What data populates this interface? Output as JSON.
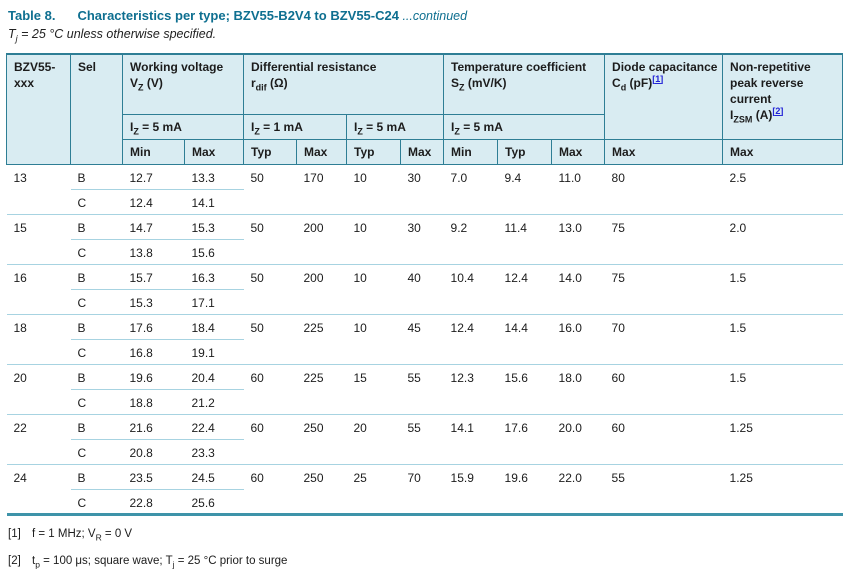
{
  "page": {
    "title_label": "Table 8.",
    "title_text": "Characteristics per type; BZV55-B2V4 to BZV55-C24",
    "title_continued": " ...continued",
    "subtitle": {
      "base": "T",
      "sub": "j",
      "rest": " = 25 °C unless otherwise specified."
    }
  },
  "colors": {
    "accent_teal": "#0e6f90",
    "border_teal": "#2e7e95",
    "border_bottom_teal": "#3e93a9",
    "header_bg": "#d9ecf2",
    "separator_blue": "#a7d3e1",
    "link_blue": "#2222d6"
  },
  "table": {
    "header": {
      "type": {
        "line1": "BZV55-",
        "line2": "xxx"
      },
      "sel": "Sel",
      "working_voltage": {
        "title": "Working voltage",
        "sym": "V",
        "sub": "Z",
        "unit": " (V)"
      },
      "diff_resistance": {
        "title": "Differential resistance",
        "sym": "r",
        "sub": "dif",
        "unit": " (Ω)"
      },
      "temp_coeff": {
        "title": "Temperature coefficient",
        "sym": "S",
        "sub": "Z",
        "unit": " (mV/K)"
      },
      "diode_cap": {
        "title": "Diode capacitance",
        "sym": "C",
        "sub": "d",
        "unit": " (pF)",
        "ref": "[1]"
      },
      "izsm": {
        "title": "Non-repetitive peak reverse current",
        "sym": "I",
        "sub": "ZSM",
        "unit": " (A)",
        "ref": "[2]"
      },
      "cond": {
        "base": "I",
        "sub": "Z",
        "c1": " = 5 mA",
        "c2": " = 1 mA",
        "c3": " = 5 mA",
        "c4": " = 5 mA"
      },
      "measures": [
        "Min",
        "Max",
        "Typ",
        "Max",
        "Typ",
        "Max",
        "Min",
        "Typ",
        "Max",
        "Max",
        "Max"
      ]
    },
    "groups": [
      {
        "type": "13",
        "b": {
          "sel": "B",
          "vmin": "12.7",
          "vmax": "13.3",
          "r1typ": "50",
          "r1max": "170",
          "r5typ": "10",
          "r5max": "30",
          "tmin": "7.0",
          "ttyp": "9.4",
          "tmax": "11.0",
          "cd": "80",
          "izsm": "2.5"
        },
        "c": {
          "sel": "C",
          "vmin": "12.4",
          "vmax": "14.1"
        }
      },
      {
        "type": "15",
        "b": {
          "sel": "B",
          "vmin": "14.7",
          "vmax": "15.3",
          "r1typ": "50",
          "r1max": "200",
          "r5typ": "10",
          "r5max": "30",
          "tmin": "9.2",
          "ttyp": "11.4",
          "tmax": "13.0",
          "cd": "75",
          "izsm": "2.0"
        },
        "c": {
          "sel": "C",
          "vmin": "13.8",
          "vmax": "15.6"
        }
      },
      {
        "type": "16",
        "b": {
          "sel": "B",
          "vmin": "15.7",
          "vmax": "16.3",
          "r1typ": "50",
          "r1max": "200",
          "r5typ": "10",
          "r5max": "40",
          "tmin": "10.4",
          "ttyp": "12.4",
          "tmax": "14.0",
          "cd": "75",
          "izsm": "1.5"
        },
        "c": {
          "sel": "C",
          "vmin": "15.3",
          "vmax": "17.1"
        }
      },
      {
        "type": "18",
        "b": {
          "sel": "B",
          "vmin": "17.6",
          "vmax": "18.4",
          "r1typ": "50",
          "r1max": "225",
          "r5typ": "10",
          "r5max": "45",
          "tmin": "12.4",
          "ttyp": "14.4",
          "tmax": "16.0",
          "cd": "70",
          "izsm": "1.5"
        },
        "c": {
          "sel": "C",
          "vmin": "16.8",
          "vmax": "19.1"
        }
      },
      {
        "type": "20",
        "b": {
          "sel": "B",
          "vmin": "19.6",
          "vmax": "20.4",
          "r1typ": "60",
          "r1max": "225",
          "r5typ": "15",
          "r5max": "55",
          "tmin": "12.3",
          "ttyp": "15.6",
          "tmax": "18.0",
          "cd": "60",
          "izsm": "1.5"
        },
        "c": {
          "sel": "C",
          "vmin": "18.8",
          "vmax": "21.2"
        }
      },
      {
        "type": "22",
        "b": {
          "sel": "B",
          "vmin": "21.6",
          "vmax": "22.4",
          "r1typ": "60",
          "r1max": "250",
          "r5typ": "20",
          "r5max": "55",
          "tmin": "14.1",
          "ttyp": "17.6",
          "tmax": "20.0",
          "cd": "60",
          "izsm": "1.25"
        },
        "c": {
          "sel": "C",
          "vmin": "20.8",
          "vmax": "23.3"
        }
      },
      {
        "type": "24",
        "b": {
          "sel": "B",
          "vmin": "23.5",
          "vmax": "24.5",
          "r1typ": "60",
          "r1max": "250",
          "r5typ": "25",
          "r5max": "70",
          "tmin": "15.9",
          "ttyp": "19.6",
          "tmax": "22.0",
          "cd": "55",
          "izsm": "1.25"
        },
        "c": {
          "sel": "C",
          "vmin": "22.8",
          "vmax": "25.6"
        }
      }
    ]
  },
  "footnotes": {
    "f1": {
      "marker": "[1]",
      "p1": "f = 1 MHz; V",
      "sub1": "R",
      "p2": " = 0 V"
    },
    "f2": {
      "marker": "[2]",
      "p1": "t",
      "sub1": "p",
      "p2": " = 100 μs; square wave; T",
      "sub2": "j",
      "p3": " = 25 °C prior to surge"
    }
  }
}
